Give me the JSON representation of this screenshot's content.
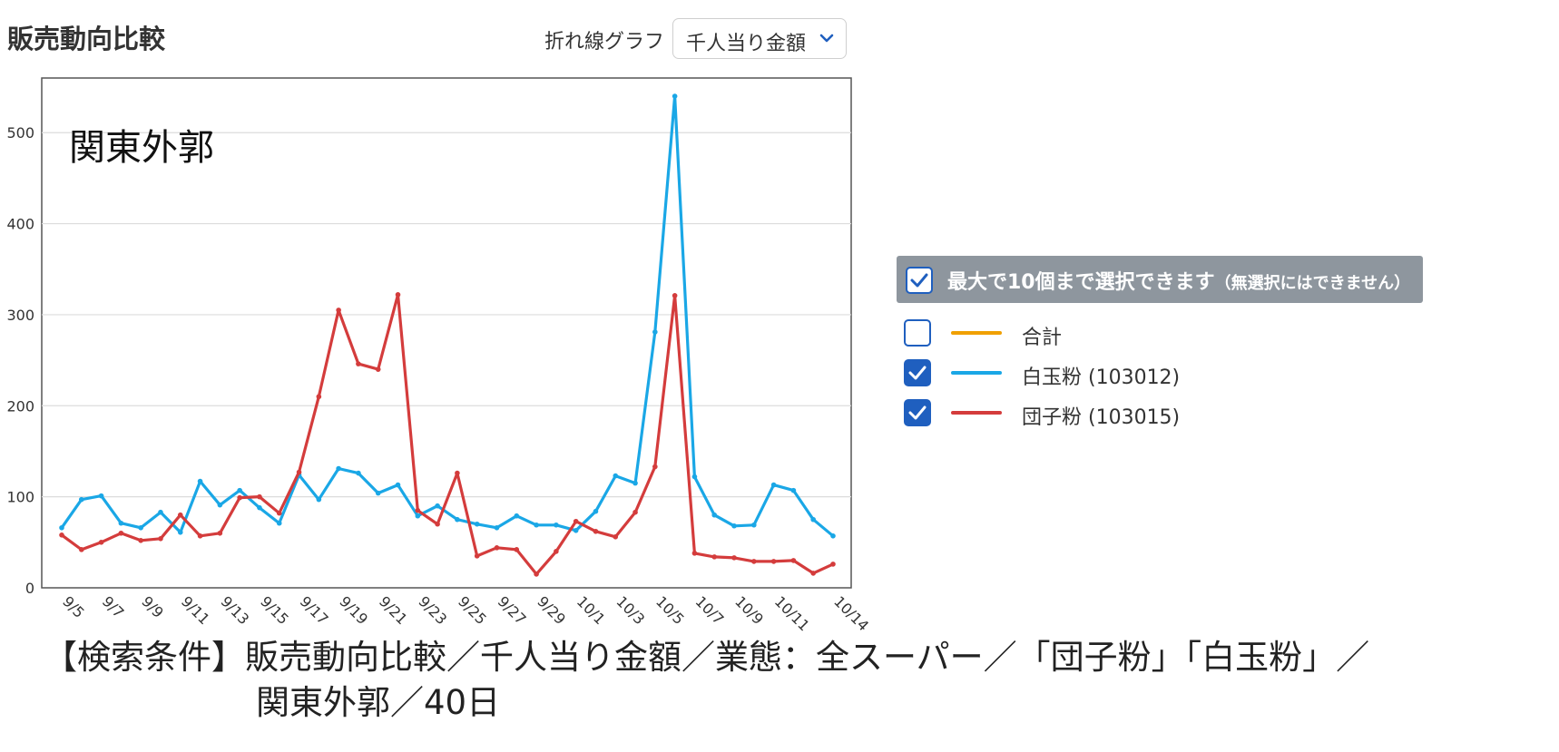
{
  "header": {
    "title": "販売動向比較",
    "chart_type_label": "折れ線グラフ",
    "metric_select": "千人当り金額"
  },
  "chart_data": {
    "type": "line",
    "title": "関東外郭",
    "xlabel": "",
    "ylabel": "",
    "ylim": [
      0,
      560
    ],
    "yticks": [
      0,
      100,
      200,
      300,
      400,
      500
    ],
    "grid": true,
    "x": [
      "9/5",
      "9/6",
      "9/7",
      "9/8",
      "9/9",
      "9/10",
      "9/11",
      "9/12",
      "9/13",
      "9/14",
      "9/15",
      "9/16",
      "9/17",
      "9/18",
      "9/19",
      "9/20",
      "9/21",
      "9/22",
      "9/23",
      "9/24",
      "9/25",
      "9/26",
      "9/27",
      "9/28",
      "9/29",
      "9/30",
      "10/1",
      "10/2",
      "10/3",
      "10/4",
      "10/5",
      "10/6",
      "10/7",
      "10/8",
      "10/9",
      "10/10",
      "10/11",
      "10/12",
      "10/13",
      "10/14"
    ],
    "xtick_labels": [
      "9/5",
      "9/7",
      "9/9",
      "9/11",
      "9/13",
      "9/15",
      "9/17",
      "9/19",
      "9/21",
      "9/23",
      "9/25",
      "9/27",
      "9/29",
      "10/1",
      "10/3",
      "10/5",
      "10/7",
      "10/9",
      "10/11",
      "10/14"
    ],
    "series": [
      {
        "name": "白玉粉 (103012)",
        "color": "#1aa7e6",
        "values": [
          66,
          97,
          101,
          71,
          66,
          83,
          61,
          117,
          91,
          107,
          88,
          71,
          124,
          97,
          131,
          126,
          104,
          113,
          79,
          90,
          75,
          70,
          66,
          79,
          69,
          69,
          63,
          84,
          123,
          115,
          281,
          540,
          122,
          80,
          68,
          69,
          113,
          107,
          75,
          57
        ]
      },
      {
        "name": "団子粉 (103015)",
        "color": "#d43c3c",
        "values": [
          58,
          42,
          50,
          60,
          52,
          54,
          80,
          57,
          60,
          99,
          100,
          82,
          127,
          210,
          305,
          246,
          240,
          322,
          85,
          70,
          126,
          35,
          44,
          42,
          15,
          40,
          73,
          62,
          56,
          83,
          133,
          321,
          38,
          34,
          33,
          29,
          29,
          30,
          16,
          26
        ]
      }
    ]
  },
  "legend": {
    "header": "最大で10個まで選択できます",
    "header_note": "（無選択にはできません）",
    "items": [
      {
        "label": "合計",
        "color": "#f0a000",
        "checked": false
      },
      {
        "label": "白玉粉 (103012)",
        "color": "#1aa7e6",
        "checked": true
      },
      {
        "label": "団子粉 (103015)",
        "color": "#d43c3c",
        "checked": true
      }
    ]
  },
  "caption": {
    "line1": "【検索条件】販売動向比較／千人当り金額／業態：全スーパー／「団子粉」「白玉粉」／",
    "line2": "関東外郭／40日"
  }
}
